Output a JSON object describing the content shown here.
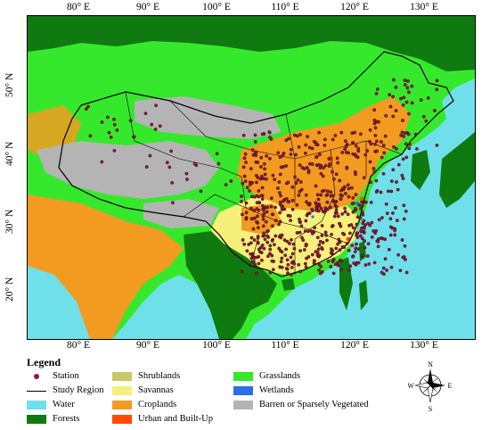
{
  "map": {
    "top_ticks": [
      "80° E",
      "90° E",
      "100° E",
      "110° E",
      "120° E",
      "130° E"
    ],
    "bottom_ticks": [
      "80° E",
      "90° E",
      "100° E",
      "110° E",
      "120° E",
      "130° E"
    ],
    "left_ticks": [
      "50° N",
      "40° N",
      "30° N",
      "20° N"
    ],
    "colors": {
      "water": "#6fe0ea",
      "forests": "#0f7a0f",
      "grasslands": "#36e82c",
      "shrublands": "#c8c86a",
      "savannas": "#f4f07a",
      "croplands": "#f29b20",
      "urban": "#ff4a00",
      "wetlands": "#2a6ee8",
      "barren": "#b4b4b4",
      "station": "#8b1a3a",
      "boundary": "#000000"
    }
  },
  "legend": {
    "title": "Legend",
    "items": [
      {
        "id": "station",
        "label": "Station",
        "kind": "point"
      },
      {
        "id": "study-region",
        "label": "Study Region",
        "kind": "line"
      },
      {
        "id": "water",
        "label": "Water",
        "kind": "fill",
        "color": "#6fe0ea"
      },
      {
        "id": "forests",
        "label": "Forests",
        "kind": "fill",
        "color": "#0f7a0f"
      },
      {
        "id": "shrublands",
        "label": "Shrublands",
        "kind": "fill",
        "color": "#c8c86a"
      },
      {
        "id": "savannas",
        "label": "Savannas",
        "kind": "fill",
        "color": "#f4f07a"
      },
      {
        "id": "croplands",
        "label": "Croplands",
        "kind": "fill",
        "color": "#f29b20"
      },
      {
        "id": "urban",
        "label": "Urban and Built-Up",
        "kind": "fill",
        "color": "#ff4a00"
      },
      {
        "id": "grasslands",
        "label": "Grasslands",
        "kind": "fill",
        "color": "#36e82c"
      },
      {
        "id": "wetlands",
        "label": "Wetlands",
        "kind": "fill",
        "color": "#2a6ee8"
      },
      {
        "id": "barren",
        "label": "Barren or Sparsely Vegetated",
        "kind": "fill",
        "color": "#b4b4b4"
      }
    ]
  },
  "compass": {
    "n": "N",
    "s": "S",
    "e": "E",
    "w": "W"
  }
}
